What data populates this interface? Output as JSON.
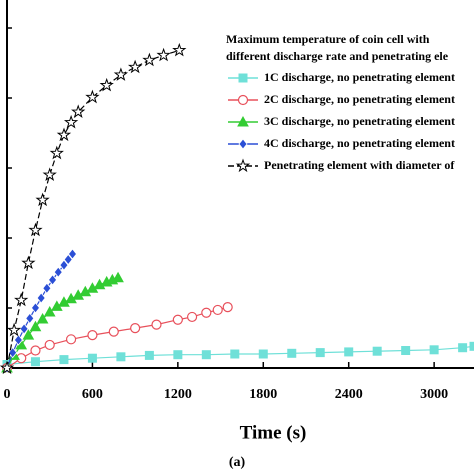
{
  "chart_data": {
    "type": "line",
    "x_label": "Time (s)",
    "caption": "(a)",
    "legend_title": [
      "Maximum temperature of coin cell with",
      "different discharge rate and penetrating ele"
    ],
    "xlim": [
      0,
      3280
    ],
    "xticks": [
      0,
      600,
      1200,
      1800,
      2400,
      3000
    ],
    "ylim": [
      20,
      72.6
    ],
    "series": [
      {
        "name": "1C discharge, no penetrating element",
        "color": "#6fe0d8",
        "marker": "square",
        "x": [
          0,
          200,
          400,
          600,
          800,
          1000,
          1200,
          1400,
          1600,
          1800,
          2000,
          2200,
          2400,
          2600,
          2800,
          3000,
          3200,
          3280
        ],
        "values": [
          20.5,
          20.9,
          21.2,
          21.4,
          21.6,
          21.8,
          21.9,
          21.9,
          22.0,
          22.0,
          22.1,
          22.2,
          22.3,
          22.4,
          22.5,
          22.6,
          22.9,
          23.1
        ]
      },
      {
        "name": "2C discharge, no penetrating element",
        "color": "#e8505b",
        "marker": "circle",
        "x": [
          0,
          100,
          200,
          300,
          450,
          600,
          750,
          900,
          1050,
          1200,
          1300,
          1400,
          1480,
          1550
        ],
        "values": [
          20,
          21.4,
          22.5,
          23.3,
          24.1,
          24.7,
          25.2,
          25.7,
          26.2,
          26.9,
          27.3,
          27.9,
          28.3,
          28.7
        ]
      },
      {
        "name": "3C discharge, no penetrating element",
        "color": "#33cc33",
        "marker": "triangle",
        "x": [
          0,
          50,
          100,
          150,
          200,
          250,
          300,
          350,
          400,
          450,
          500,
          550,
          600,
          650,
          700,
          740,
          780
        ],
        "values": [
          20,
          21.8,
          23.3,
          24.7,
          25.9,
          27.0,
          28.0,
          28.8,
          29.4,
          29.9,
          30.4,
          30.9,
          31.4,
          31.9,
          32.3,
          32.6,
          32.9
        ]
      },
      {
        "name": "4C discharge, no penetrating element",
        "color": "#2b4fd6",
        "marker": "diamond",
        "x": [
          0,
          40,
          80,
          120,
          160,
          200,
          240,
          280,
          320,
          360,
          400,
          430,
          460
        ],
        "values": [
          20,
          22.2,
          24.0,
          25.6,
          27.1,
          28.6,
          30.0,
          31.4,
          32.6,
          33.7,
          34.7,
          35.5,
          36.3
        ]
      },
      {
        "name": "Penetrating element with diameter of",
        "color": "#000000",
        "marker": "star",
        "x": [
          0,
          50,
          100,
          150,
          200,
          250,
          300,
          350,
          400,
          450,
          500,
          600,
          700,
          800,
          900,
          1000,
          1100,
          1210
        ],
        "values": [
          20,
          25.4,
          29.7,
          35.0,
          39.7,
          44.0,
          47.6,
          50.7,
          53.3,
          55.1,
          56.6,
          58.7,
          60.4,
          61.9,
          63.0,
          64.0,
          64.7,
          65.4
        ]
      }
    ]
  }
}
